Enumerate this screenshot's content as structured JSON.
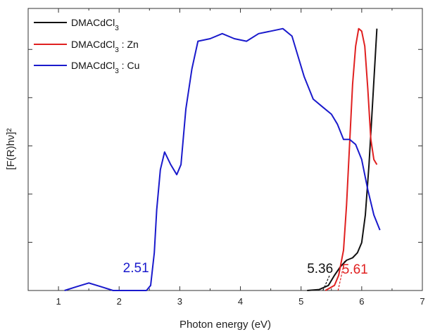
{
  "chart_data": {
    "type": "line",
    "xlabel": "Photon energy (eV)",
    "ylabel": "[F(R)hν]²",
    "xlim": [
      0.5,
      7
    ],
    "ylim": [
      0,
      1
    ],
    "x_ticks": [
      "1",
      "2",
      "3",
      "4",
      "5",
      "6",
      "7"
    ],
    "y_tick_labels_shown": false,
    "grid": false,
    "legend_position": "top-left",
    "series": [
      {
        "name": "DMACdCl3",
        "color": "#111111",
        "points": [
          [
            5.1,
            0.0
          ],
          [
            5.3,
            0.004
          ],
          [
            5.45,
            0.02
          ],
          [
            5.55,
            0.06
          ],
          [
            5.65,
            0.095
          ],
          [
            5.75,
            0.12
          ],
          [
            5.85,
            0.13
          ],
          [
            5.93,
            0.15
          ],
          [
            6.0,
            0.19
          ],
          [
            6.06,
            0.3
          ],
          [
            6.12,
            0.5
          ],
          [
            6.18,
            0.75
          ],
          [
            6.25,
            1.04
          ]
        ]
      },
      {
        "name": "DMACdCl3 : Zn",
        "color": "#e02020",
        "points": [
          [
            5.4,
            0.0
          ],
          [
            5.55,
            0.02
          ],
          [
            5.62,
            0.06
          ],
          [
            5.7,
            0.16
          ],
          [
            5.75,
            0.34
          ],
          [
            5.8,
            0.58
          ],
          [
            5.85,
            0.82
          ],
          [
            5.9,
            0.97
          ],
          [
            5.95,
            1.04
          ],
          [
            6.0,
            1.03
          ],
          [
            6.05,
            0.97
          ],
          [
            6.1,
            0.8
          ],
          [
            6.15,
            0.6
          ],
          [
            6.2,
            0.52
          ],
          [
            6.25,
            0.5
          ]
        ]
      },
      {
        "name": "DMACdCl3 : Cu",
        "color": "#1a1acc",
        "points": [
          [
            1.1,
            0.0
          ],
          [
            1.3,
            0.015
          ],
          [
            1.5,
            0.03
          ],
          [
            1.7,
            0.015
          ],
          [
            1.9,
            0.0
          ],
          [
            2.45,
            0.0
          ],
          [
            2.52,
            0.02
          ],
          [
            2.58,
            0.15
          ],
          [
            2.62,
            0.32
          ],
          [
            2.68,
            0.48
          ],
          [
            2.75,
            0.55
          ],
          [
            2.85,
            0.5
          ],
          [
            2.95,
            0.46
          ],
          [
            3.02,
            0.5
          ],
          [
            3.1,
            0.72
          ],
          [
            3.2,
            0.88
          ],
          [
            3.3,
            0.99
          ],
          [
            3.5,
            1.0
          ],
          [
            3.7,
            1.02
          ],
          [
            3.9,
            1.0
          ],
          [
            4.1,
            0.99
          ],
          [
            4.3,
            1.02
          ],
          [
            4.5,
            1.03
          ],
          [
            4.7,
            1.04
          ],
          [
            4.85,
            1.01
          ],
          [
            4.95,
            0.93
          ],
          [
            5.05,
            0.85
          ],
          [
            5.2,
            0.76
          ],
          [
            5.35,
            0.73
          ],
          [
            5.5,
            0.7
          ],
          [
            5.6,
            0.66
          ],
          [
            5.7,
            0.6
          ],
          [
            5.8,
            0.6
          ],
          [
            5.9,
            0.58
          ],
          [
            6.0,
            0.52
          ],
          [
            6.1,
            0.4
          ],
          [
            6.2,
            0.3
          ],
          [
            6.3,
            0.24
          ]
        ]
      }
    ],
    "annotations": [
      {
        "text": "2.51",
        "x": 2.51,
        "color": "#1a1acc"
      },
      {
        "text": "5.36",
        "x": 5.36,
        "color": "#111111"
      },
      {
        "text": "5.61",
        "x": 5.61,
        "color": "#e02020"
      }
    ]
  }
}
